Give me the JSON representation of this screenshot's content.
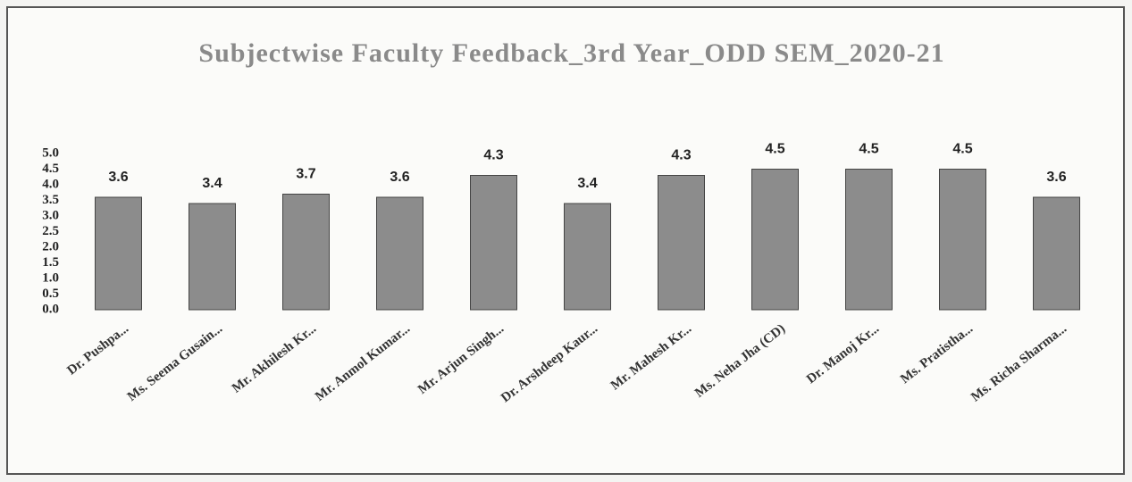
{
  "chart_data": {
    "type": "bar",
    "title": "Subjectwise Faculty Feedback_3rd Year_ODD SEM_2020-21",
    "categories": [
      "Dr. Pushpa...",
      "Ms. Seema Gusain...",
      "Mr. Akhilesh Kr...",
      "Mr. Anmol Kumar...",
      "Mr. Arjun Singh...",
      "Dr. Arshdeep Kaur...",
      "Mr. Mahesh Kr...",
      "Ms. Neha Jha (CD)",
      "Dr. Manoj Kr...",
      "Ms. Pratistha...",
      "Ms. Richa Sharma..."
    ],
    "values": [
      3.6,
      3.4,
      3.7,
      3.6,
      4.3,
      3.4,
      4.3,
      4.5,
      4.5,
      4.5,
      3.6
    ],
    "color": "#8c8c8c",
    "ylim": [
      0,
      5
    ],
    "yticks": [
      {
        "value": 0,
        "label": "0.0"
      },
      0.5,
      {
        "value": 1,
        "label": "1.0"
      },
      1.5,
      {
        "value": 2,
        "label": "2.0"
      },
      2.5,
      {
        "value": 3,
        "label": "3.0"
      },
      3.5,
      {
        "value": 4,
        "label": "4.0"
      },
      4.5,
      {
        "value": 5,
        "label": "5.0"
      }
    ],
    "grid": false
  }
}
